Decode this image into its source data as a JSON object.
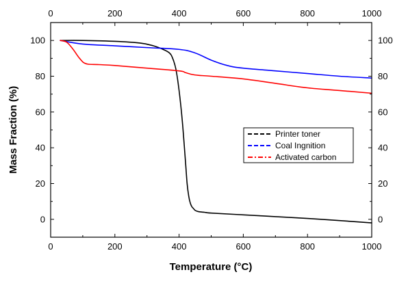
{
  "chart_data": {
    "type": "line",
    "xlabel": "Temperature (°C)",
    "ylabel": "Mass Fraction (%)",
    "xlim": [
      0,
      1000
    ],
    "ylim": [
      -10,
      110
    ],
    "x_ticks": [
      0,
      200,
      400,
      600,
      800,
      1000
    ],
    "y_ticks": [
      0,
      20,
      40,
      60,
      80,
      100
    ],
    "mirror_axes": true,
    "grid": false,
    "legend_position": "center-right",
    "series": [
      {
        "name": "Printer toner",
        "color": "#000000",
        "dash": "dashed",
        "x": [
          30,
          100,
          200,
          280,
          320,
          350,
          370,
          380,
          390,
          400,
          410,
          420,
          425,
          430,
          435,
          440,
          445,
          450,
          460,
          480,
          500,
          600,
          700,
          800,
          900,
          1000
        ],
        "y": [
          100,
          100,
          99.5,
          98.5,
          97,
          95,
          93,
          90,
          84,
          72,
          55,
          32,
          20,
          13,
          9,
          7,
          6,
          5,
          4.3,
          3.9,
          3.5,
          2.5,
          1.5,
          0.5,
          -0.7,
          -2
        ]
      },
      {
        "name": "Coal Ingnition",
        "color": "#0000ff",
        "dash": "dashed",
        "x": [
          30,
          100,
          200,
          300,
          400,
          450,
          500,
          550,
          600,
          700,
          800,
          900,
          1000
        ],
        "y": [
          100,
          98,
          97,
          96,
          95,
          93,
          89,
          86,
          84.5,
          83,
          81.5,
          80,
          79
        ]
      },
      {
        "name": "Activated carbon",
        "color": "#ff0000",
        "dash": "dash-dot",
        "x": [
          30,
          50,
          70,
          90,
          110,
          150,
          200,
          300,
          400,
          420,
          440,
          460,
          500,
          600,
          700,
          800,
          900,
          1000
        ],
        "y": [
          100,
          99,
          95,
          90,
          87,
          86.5,
          86,
          84.5,
          83,
          82,
          81,
          80.5,
          80,
          78.5,
          76,
          73.5,
          72,
          70.5
        ]
      }
    ]
  }
}
